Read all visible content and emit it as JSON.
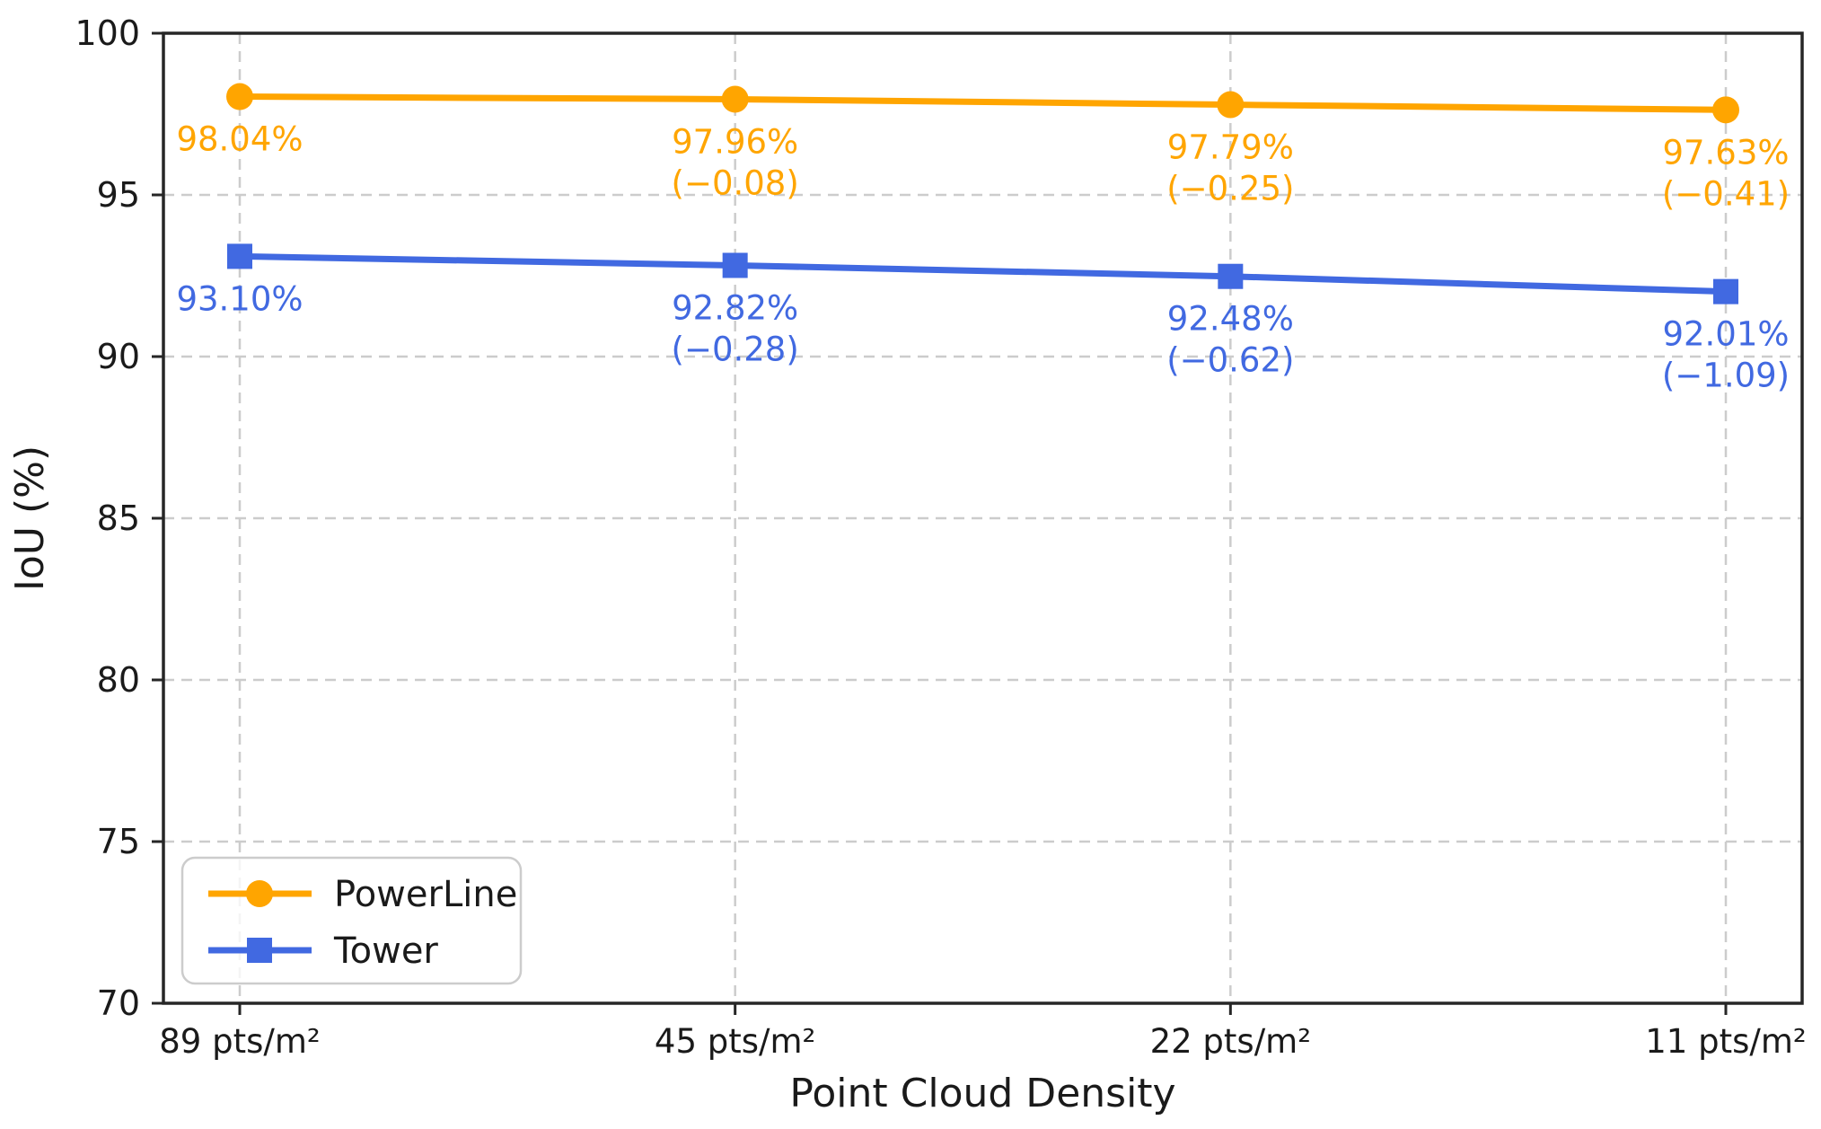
{
  "chart_data": {
    "type": "line",
    "title": "",
    "xlabel": "Point Cloud Density",
    "ylabel": "IoU (%)",
    "categories": [
      "89 pts/m²",
      "45 pts/m²",
      "22 pts/m²",
      "11 pts/m²"
    ],
    "ylim": [
      70,
      100
    ],
    "yticks": [
      70,
      75,
      80,
      85,
      90,
      95,
      100
    ],
    "grid": {
      "show": true,
      "style": "dashed",
      "color": "#cccccc"
    },
    "axis_color": "#262626",
    "tick_label_color": "#1a1a1a",
    "background": "#ffffff",
    "legend": {
      "position": "lower-left",
      "entries": [
        "PowerLine",
        "Tower"
      ]
    },
    "series": [
      {
        "name": "PowerLine",
        "color": "#FFA500",
        "marker": "circle",
        "values": [
          98.04,
          97.96,
          97.79,
          97.63
        ],
        "point_labels": [
          [
            "98.04%"
          ],
          [
            "97.96%",
            "(−0.08)"
          ],
          [
            "97.79%",
            "(−0.25)"
          ],
          [
            "97.63%",
            "(−0.41)"
          ]
        ]
      },
      {
        "name": "Tower",
        "color": "#4169E1",
        "marker": "square",
        "values": [
          93.1,
          92.82,
          92.48,
          92.01
        ],
        "point_labels": [
          [
            "93.10%"
          ],
          [
            "92.82%",
            "(−0.28)"
          ],
          [
            "92.48%",
            "(−0.62)"
          ],
          [
            "92.01%",
            "(−1.09)"
          ]
        ]
      }
    ]
  }
}
